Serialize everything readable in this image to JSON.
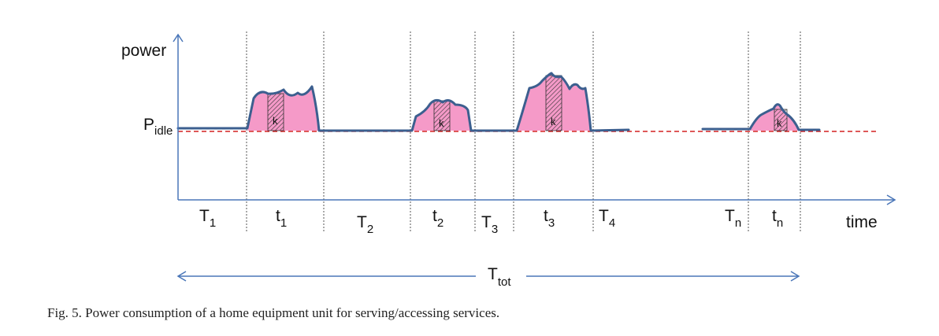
{
  "figure": {
    "y_axis_label": "power",
    "x_axis_label": "time",
    "idle_label": {
      "base": "P",
      "sub": "idle"
    },
    "period_labels": [
      {
        "base": "T",
        "sub": "1"
      },
      {
        "base": "t",
        "sub": "1"
      },
      {
        "base": "T",
        "sub": "2"
      },
      {
        "base": "t",
        "sub": "2"
      },
      {
        "base": "T",
        "sub": "3"
      },
      {
        "base": "t",
        "sub": "3"
      },
      {
        "base": "T",
        "sub": "4"
      },
      {
        "base": "T",
        "sub": "n"
      },
      {
        "base": "t",
        "sub": "n"
      }
    ],
    "k_labels": [
      "k",
      "k",
      "k",
      "k"
    ],
    "total_label": {
      "base": "T",
      "sub": "tot"
    },
    "colors": {
      "axis": "#4a76b8",
      "curve": "#3c5f8f",
      "fill": "#f59ac8",
      "idle_dashed": "#d42020",
      "divider": "#555555"
    }
  },
  "caption": "Fig. 5.  Power consumption of a home equipment unit for serving/accessing services."
}
